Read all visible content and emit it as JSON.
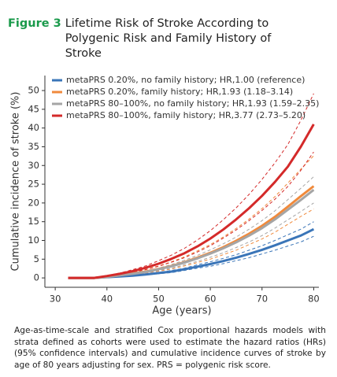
{
  "figure": {
    "label": "Figure 3",
    "title": "Lifetime Risk of Stroke According to Polygenic Risk and Family History of Stroke",
    "caption": "Age-as-time-scale and stratified Cox proportional hazards models with strata defined as cohorts were used to estimate the hazard ratios (HRs) (95% confidence intervals) and cumulative incidence curves of stroke by age of 80 years adjusting for sex. PRS = polygenic risk score."
  },
  "chart_data": {
    "type": "line",
    "x_label": "Age (years)",
    "y_label": "Cumulative incidence of stroke (%)",
    "x": [
      32.5,
      35,
      37.5,
      40,
      42.5,
      45,
      47.5,
      50,
      52.5,
      55,
      57.5,
      60,
      62.5,
      65,
      67.5,
      70,
      72.5,
      75,
      77.5,
      80
    ],
    "xlim": [
      28,
      81
    ],
    "xticks": [
      30,
      40,
      50,
      60,
      70,
      80
    ],
    "ylim": [
      -2.5,
      54
    ],
    "yticks": [
      0,
      5,
      10,
      15,
      20,
      25,
      30,
      35,
      40,
      45,
      50
    ],
    "grid": false,
    "legend": "upper-left",
    "series": [
      {
        "name": "metaPRS 0.20%, no family history; HR,1.00 (reference)",
        "color": "#3a75b8",
        "values": [
          0,
          0,
          0,
          0.2,
          0.4,
          0.6,
          0.9,
          1.3,
          1.7,
          2.3,
          3.0,
          3.7,
          4.5,
          5.4,
          6.4,
          7.5,
          8.7,
          10,
          11.3,
          13
        ],
        "lower": [
          0,
          0,
          0,
          0.2,
          0.3,
          0.5,
          0.8,
          1.1,
          1.4,
          2.0,
          2.6,
          3.1,
          3.8,
          4.6,
          5.4,
          6.4,
          7.4,
          8.5,
          9.6,
          11.1
        ],
        "upper": [
          0,
          0,
          0,
          0.2,
          0.5,
          0.7,
          1.0,
          1.5,
          2.0,
          2.6,
          3.5,
          4.3,
          5.2,
          6.2,
          7.4,
          8.6,
          10.0,
          11.5,
          13.0,
          15.0
        ]
      },
      {
        "name": "metaPRS 0.20%, family history; HR,1.93 (1.18–3.14)",
        "color": "#f08a3c",
        "values": [
          0,
          0,
          0,
          0.3,
          0.7,
          1.2,
          1.7,
          2.4,
          3.2,
          4.2,
          5.4,
          6.7,
          8.2,
          9.9,
          11.8,
          13.9,
          16.3,
          19,
          21.8,
          24.5
        ],
        "lower": [
          0,
          0,
          0,
          0.2,
          0.5,
          0.9,
          1.3,
          1.8,
          2.4,
          3.2,
          4.1,
          5.0,
          6.2,
          7.4,
          8.9,
          10.4,
          12.2,
          14.3,
          16.4,
          18.4
        ],
        "upper": [
          0,
          0,
          0,
          0.4,
          0.9,
          1.6,
          2.3,
          3.2,
          4.3,
          5.6,
          7.2,
          8.9,
          10.9,
          13.2,
          15.7,
          18.5,
          21.7,
          25.3,
          29.0,
          32.6
        ]
      },
      {
        "name": "metaPRS 80–100%, no family history; HR,1.93 (1.59–2.35)",
        "color": "#a5a5a5",
        "values": [
          0,
          0,
          0,
          0.3,
          0.7,
          1.1,
          1.6,
          2.3,
          3.1,
          4.1,
          5.2,
          6.5,
          7.9,
          9.5,
          11.3,
          13.3,
          15.6,
          18.2,
          20.8,
          23.5
        ],
        "lower": [
          0,
          0,
          0,
          0.3,
          0.6,
          0.9,
          1.4,
          2.0,
          2.6,
          3.5,
          4.4,
          5.5,
          6.7,
          8.1,
          9.6,
          11.3,
          13.3,
          15.5,
          17.7,
          20.0
        ],
        "upper": [
          0,
          0,
          0,
          0.3,
          0.8,
          1.3,
          1.8,
          2.6,
          3.6,
          4.7,
          6.0,
          7.5,
          9.1,
          10.9,
          13.0,
          15.3,
          17.9,
          20.9,
          23.9,
          27.0
        ]
      },
      {
        "name": "metaPRS 80–100%, family history; HR,3.77 (2.73–5.20)",
        "color": "#d42a2a",
        "values": [
          0,
          0,
          0,
          0.5,
          1.1,
          1.8,
          2.7,
          3.8,
          5.1,
          6.6,
          8.4,
          10.5,
          12.9,
          15.6,
          18.6,
          21.9,
          25.6,
          29.7,
          35,
          41
        ],
        "lower": [
          0,
          0,
          0,
          0.4,
          0.9,
          1.5,
          2.2,
          3.1,
          4.2,
          5.4,
          6.9,
          8.6,
          10.6,
          12.8,
          15.3,
          18.0,
          21.0,
          24.4,
          28.7,
          33.6
        ],
        "upper": [
          0,
          0,
          0,
          0.6,
          1.3,
          2.2,
          3.2,
          4.6,
          6.1,
          7.9,
          10.1,
          12.6,
          15.5,
          18.7,
          22.3,
          26.3,
          30.7,
          35.6,
          42.0,
          49.2
        ]
      }
    ]
  }
}
